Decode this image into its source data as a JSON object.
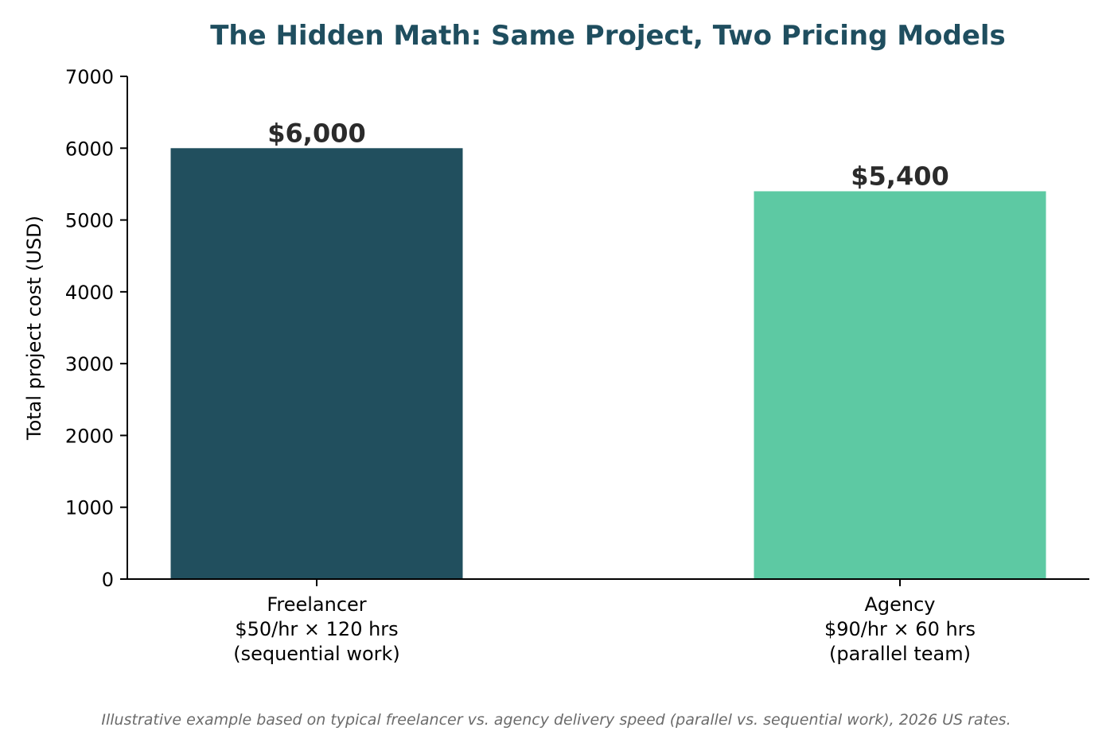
{
  "chart_data": {
    "type": "bar",
    "title": "The Hidden Math: Same Project, Two Pricing Models",
    "xlabel": "",
    "ylabel": "Total project cost (USD)",
    "ylim": [
      0,
      7000
    ],
    "yticks": [
      0,
      1000,
      2000,
      3000,
      4000,
      5000,
      6000,
      7000
    ],
    "grid": false,
    "categories": [
      [
        "Freelancer",
        "$50/hr × 120 hrs",
        "(sequential work)"
      ],
      [
        "Agency",
        "$90/hr × 60 hrs",
        "(parallel team)"
      ]
    ],
    "values": [
      6000,
      5400
    ],
    "value_labels": [
      "$6,000",
      "$5,400"
    ],
    "colors": [
      "#214f5e",
      "#5dc9a3"
    ],
    "title_color": "#1f4e5f",
    "footnote": "Illustrative example based on typical freelancer vs. agency delivery speed (parallel vs. sequential work), 2026 US rates."
  }
}
